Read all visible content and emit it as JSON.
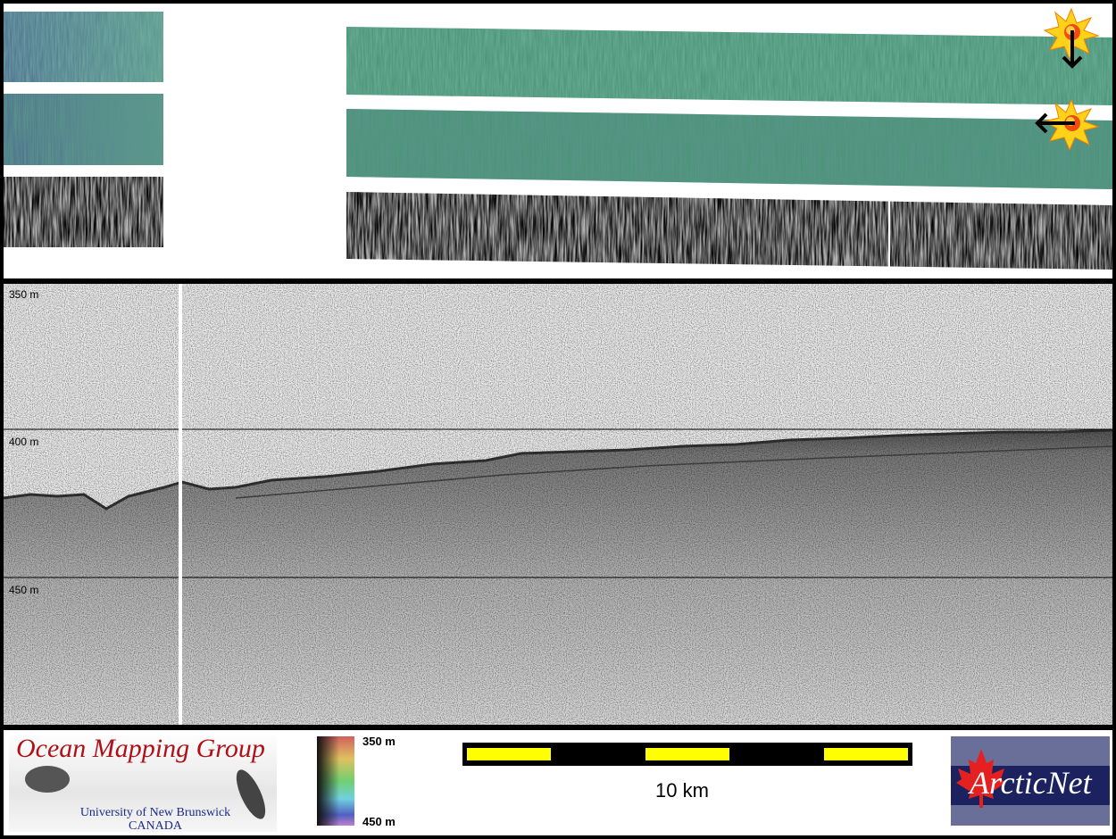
{
  "profile": {
    "depth_labels": [
      "350 m",
      "400 m",
      "450 m"
    ]
  },
  "footer": {
    "ocean_mapping_logo": {
      "title": "Ocean Mapping Group",
      "line1": "University of New Brunswick",
      "line2": "CANADA"
    },
    "colorbar": {
      "top_label": "350 m",
      "bottom_label": "450 m"
    },
    "scale_bar": {
      "label": "10 km",
      "colors": [
        "#ffff00",
        "#000000"
      ]
    },
    "arcticnet_logo": {
      "text": "ArcticNet"
    }
  },
  "icons": [
    "sun-illumination-icon-down",
    "sun-illumination-icon-left"
  ],
  "colors": {
    "bathymetry": "#3f8a6e",
    "accent_red": "#b01018",
    "logo_navy": "#1c2260"
  }
}
